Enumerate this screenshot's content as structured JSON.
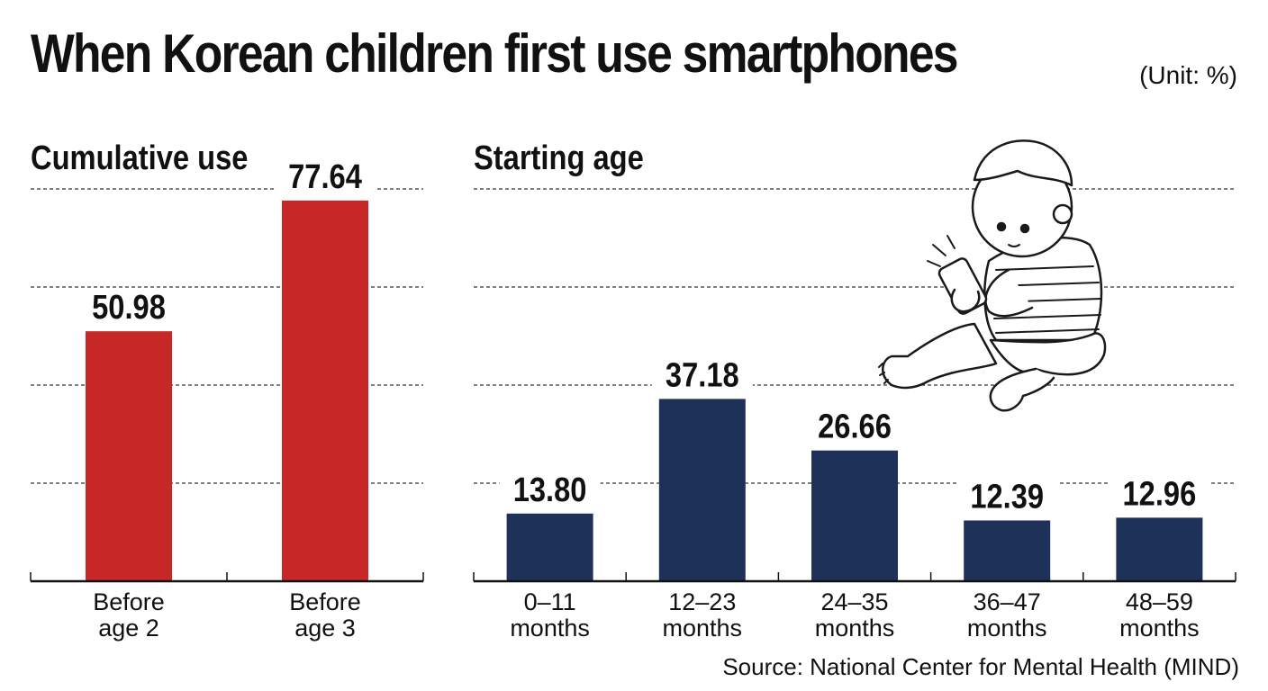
{
  "title": "When Korean children first use smartphones",
  "unit": "(Unit: %)",
  "source": "Source: National Center for Mental Health (MIND)",
  "colors": {
    "cumulative_bar": "#c62828",
    "starting_bar": "#1e3158",
    "gridline": "#333333",
    "axis": "#111111"
  },
  "chart_data": [
    {
      "type": "bar",
      "title": "Cumulative use",
      "categories": [
        "Before\nage 2",
        "Before\nage 3"
      ],
      "values": [
        50.98,
        77.64
      ],
      "value_labels": [
        "50.98",
        "77.64"
      ],
      "ylim": [
        0,
        80
      ],
      "grid": true,
      "xlabel": "",
      "ylabel": ""
    },
    {
      "type": "bar",
      "title": "Starting age",
      "categories": [
        "0–11\nmonths",
        "12–23\nmonths",
        "24–35\nmonths",
        "36–47\nmonths",
        "48–59\nmonths"
      ],
      "values": [
        13.8,
        37.18,
        26.66,
        12.39,
        12.96
      ],
      "value_labels": [
        "13.80",
        "37.18",
        "26.66",
        "12.39",
        "12.96"
      ],
      "ylim": [
        0,
        80
      ],
      "grid": true,
      "xlabel": "",
      "ylabel": ""
    }
  ]
}
